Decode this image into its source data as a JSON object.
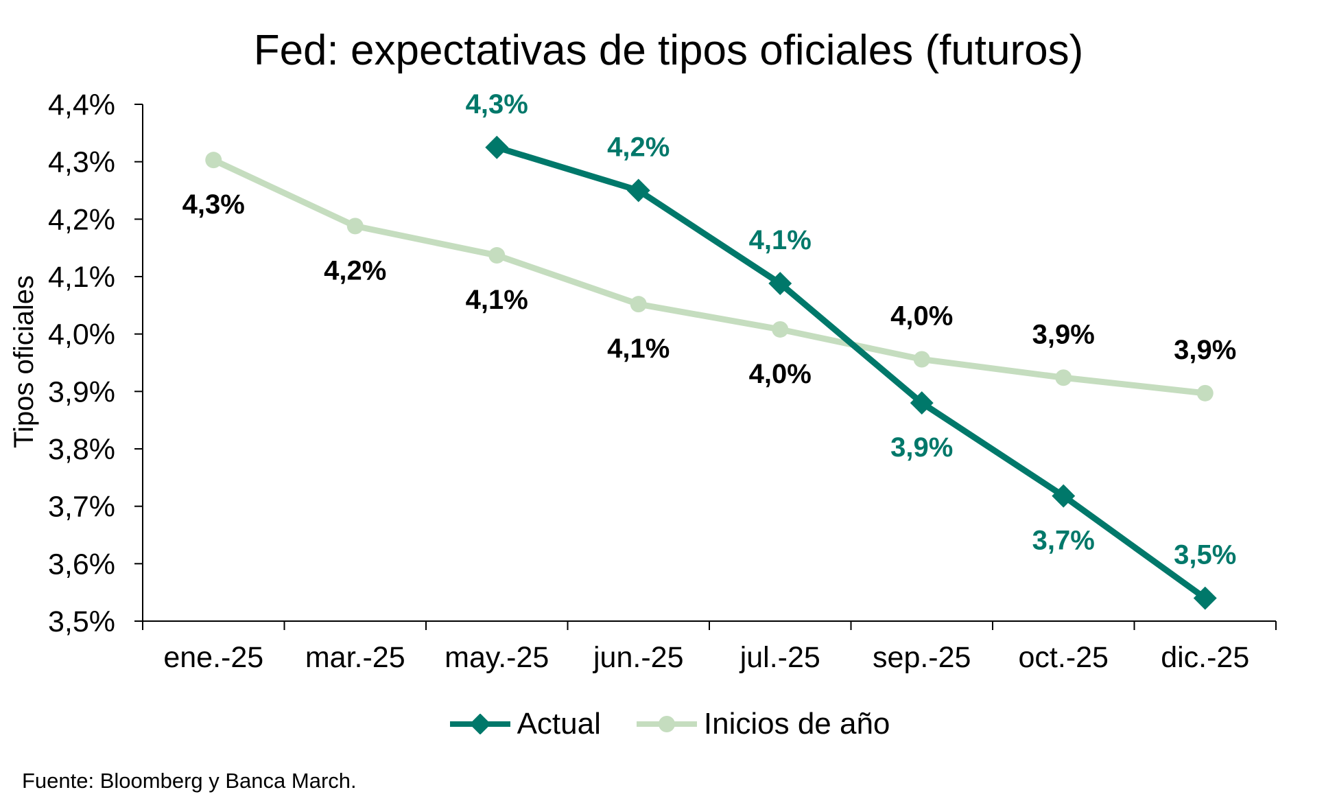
{
  "chart_data": {
    "type": "line",
    "title": "Fed: expectativas de tipos oficiales (futuros)",
    "ylabel": "Tipos oficiales",
    "xlabel": "",
    "categories": [
      "ene.-25",
      "mar.-25",
      "may.-25",
      "jun.-25",
      "jul.-25",
      "sep.-25",
      "oct.-25",
      "dic.-25"
    ],
    "ylim": [
      3.5,
      4.4
    ],
    "yticks": [
      3.5,
      3.6,
      3.7,
      3.8,
      3.9,
      4.0,
      4.1,
      4.2,
      4.3,
      4.4
    ],
    "ytick_labels": [
      "3,5%",
      "3,6%",
      "3,7%",
      "3,8%",
      "3,9%",
      "4,0%",
      "4,1%",
      "4,2%",
      "4,3%",
      "4,4%"
    ],
    "grid": false,
    "legend_position": "bottom",
    "series": [
      {
        "name": "Actual",
        "color": "#00786A",
        "marker": "diamond",
        "values": [
          null,
          null,
          4.325,
          4.25,
          4.088,
          3.88,
          3.718,
          3.54
        ],
        "labels": [
          null,
          null,
          "4,3%",
          "4,2%",
          "4,1%",
          "3,9%",
          "3,7%",
          "3,5%"
        ],
        "label_position": [
          "above",
          "above",
          "above",
          "above",
          "above",
          "below",
          "below",
          "above"
        ]
      },
      {
        "name": "Inicios de año",
        "color": "#C5DDBF",
        "marker": "circle",
        "values": [
          4.303,
          4.188,
          4.137,
          4.052,
          4.008,
          3.956,
          3.924,
          3.897
        ],
        "labels": [
          "4,3%",
          "4,2%",
          "4,1%",
          "4,1%",
          "4,0%",
          "4,0%",
          "3,9%",
          "3,9%"
        ],
        "label_position": [
          "below",
          "below",
          "below",
          "below",
          "below",
          "above",
          "above",
          "above"
        ]
      }
    ],
    "label_color_dark": "#000000",
    "label_color_accent": "#00786A"
  },
  "source": "Fuente: Bloomberg y Banca March."
}
